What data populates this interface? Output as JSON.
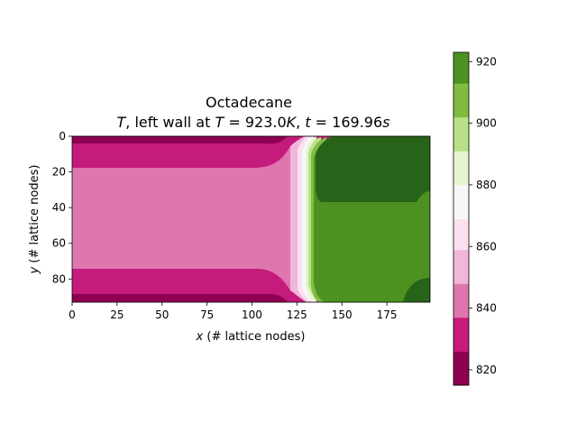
{
  "chart_data": {
    "type": "heatmap",
    "title_line1": "Octadecane",
    "title_line2_parts": [
      "T",
      ", left wall at ",
      "T",
      " = 923.0",
      "K",
      ", ",
      "t",
      " = 169.96",
      "s"
    ],
    "xlabel_var": "x",
    "xlabel_rest": " (# lattice nodes)",
    "ylabel_var": "y",
    "ylabel_rest": " (# lattice nodes)",
    "xlim": [
      0,
      199
    ],
    "ylim": [
      0,
      93
    ],
    "x_ticks": [
      0,
      25,
      50,
      75,
      100,
      125,
      150,
      175
    ],
    "y_ticks": [
      0,
      20,
      40,
      60,
      80
    ],
    "colorbar_range": [
      815,
      923
    ],
    "colorbar_levels": [
      815,
      826,
      837,
      848,
      859,
      869,
      880,
      891,
      902,
      913,
      923
    ],
    "colorbar_ticks": [
      820,
      840,
      860,
      880,
      900,
      920
    ],
    "colormap": [
      "#8e0152",
      "#c51b7d",
      "#de77ae",
      "#f1b6da",
      "#fde0ef",
      "#f7f7f7",
      "#e6f5d0",
      "#b8e186",
      "#7fbc41",
      "#4d9221",
      "#276419"
    ],
    "regions": {
      "outer_band_value": 821,
      "mid_band_value": 832,
      "center_value": 843,
      "melt_front_x": 133,
      "upper_liquid_value": 918,
      "lower_liquid_value": 908,
      "liquid_split_y": 36
    }
  }
}
